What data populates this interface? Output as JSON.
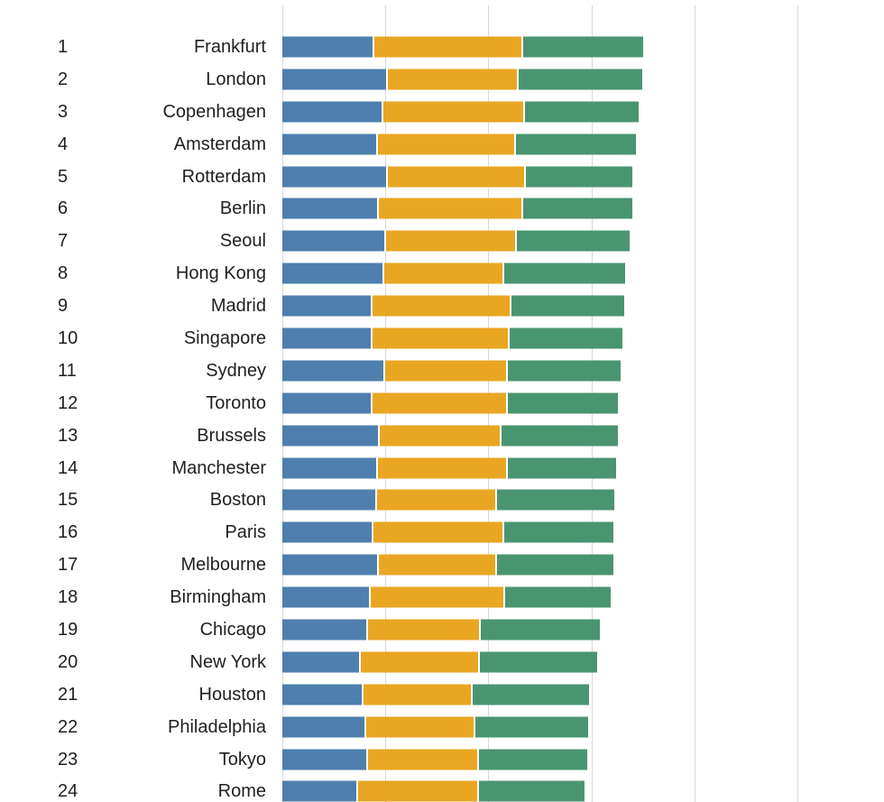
{
  "chart_data": {
    "type": "bar",
    "orientation": "horizontal",
    "stacked": true,
    "title": "",
    "xlabel": "",
    "ylabel": "",
    "xlim": [
      0,
      100
    ],
    "gridlines": [
      0,
      20,
      40,
      60,
      80,
      100
    ],
    "grid": true,
    "legend": "none-visible",
    "series": [
      {
        "key": "blue",
        "color": "#4e7fae"
      },
      {
        "key": "yellow",
        "color": "#e9a622"
      },
      {
        "key": "green",
        "color": "#4a9571"
      }
    ],
    "rows": [
      {
        "rank": "1",
        "city": "Frankfurt",
        "segments": [
          17.9,
          28.9,
          23.3
        ]
      },
      {
        "rank": "2",
        "city": "London",
        "segments": [
          20.5,
          25.4,
          23.9
        ]
      },
      {
        "rank": "3",
        "city": "Copenhagen",
        "segments": [
          19.6,
          27.5,
          22.1
        ]
      },
      {
        "rank": "4",
        "city": "Amsterdam",
        "segments": [
          18.6,
          26.8,
          23.2
        ]
      },
      {
        "rank": "5",
        "city": "Rotterdam",
        "segments": [
          20.5,
          26.8,
          20.7
        ]
      },
      {
        "rank": "6",
        "city": "Berlin",
        "segments": [
          18.8,
          27.9,
          21.2
        ]
      },
      {
        "rank": "7",
        "city": "Seoul",
        "segments": [
          20.2,
          25.4,
          21.8
        ]
      },
      {
        "rank": "8",
        "city": "Hong Kong",
        "segments": [
          19.8,
          23.2,
          23.5
        ]
      },
      {
        "rank": "9",
        "city": "Madrid",
        "segments": [
          17.5,
          27.0,
          21.8
        ]
      },
      {
        "rank": "10",
        "city": "Singapore",
        "segments": [
          17.5,
          26.7,
          21.8
        ]
      },
      {
        "rank": "11",
        "city": "Sydney",
        "segments": [
          20.0,
          23.7,
          21.9
        ]
      },
      {
        "rank": "12",
        "city": "Toronto",
        "segments": [
          17.5,
          26.3,
          21.4
        ]
      },
      {
        "rank": "13",
        "city": "Brussels",
        "segments": [
          18.9,
          23.7,
          22.5
        ]
      },
      {
        "rank": "14",
        "city": "Manchester",
        "segments": [
          18.6,
          25.1,
          21.1
        ]
      },
      {
        "rank": "15",
        "city": "Boston",
        "segments": [
          18.4,
          23.2,
          22.8
        ]
      },
      {
        "rank": "16",
        "city": "Paris",
        "segments": [
          17.7,
          25.4,
          21.2
        ]
      },
      {
        "rank": "17",
        "city": "Melbourne",
        "segments": [
          18.8,
          22.8,
          22.6
        ]
      },
      {
        "rank": "18",
        "city": "Birmingham",
        "segments": [
          17.2,
          26.0,
          20.5
        ]
      },
      {
        "rank": "19",
        "city": "Chicago",
        "segments": [
          16.7,
          21.9,
          23.0
        ]
      },
      {
        "rank": "20",
        "city": "New York",
        "segments": [
          15.3,
          23.0,
          22.8
        ]
      },
      {
        "rank": "21",
        "city": "Houston",
        "segments": [
          15.8,
          21.2,
          22.5
        ]
      },
      {
        "rank": "22",
        "city": "Philadelphia",
        "segments": [
          16.3,
          21.2,
          21.8
        ]
      },
      {
        "rank": "23",
        "city": "Tokyo",
        "segments": [
          16.6,
          21.6,
          21.0
        ]
      },
      {
        "rank": "24",
        "city": "Rome",
        "segments": [
          14.7,
          23.5,
          20.5
        ]
      }
    ]
  }
}
